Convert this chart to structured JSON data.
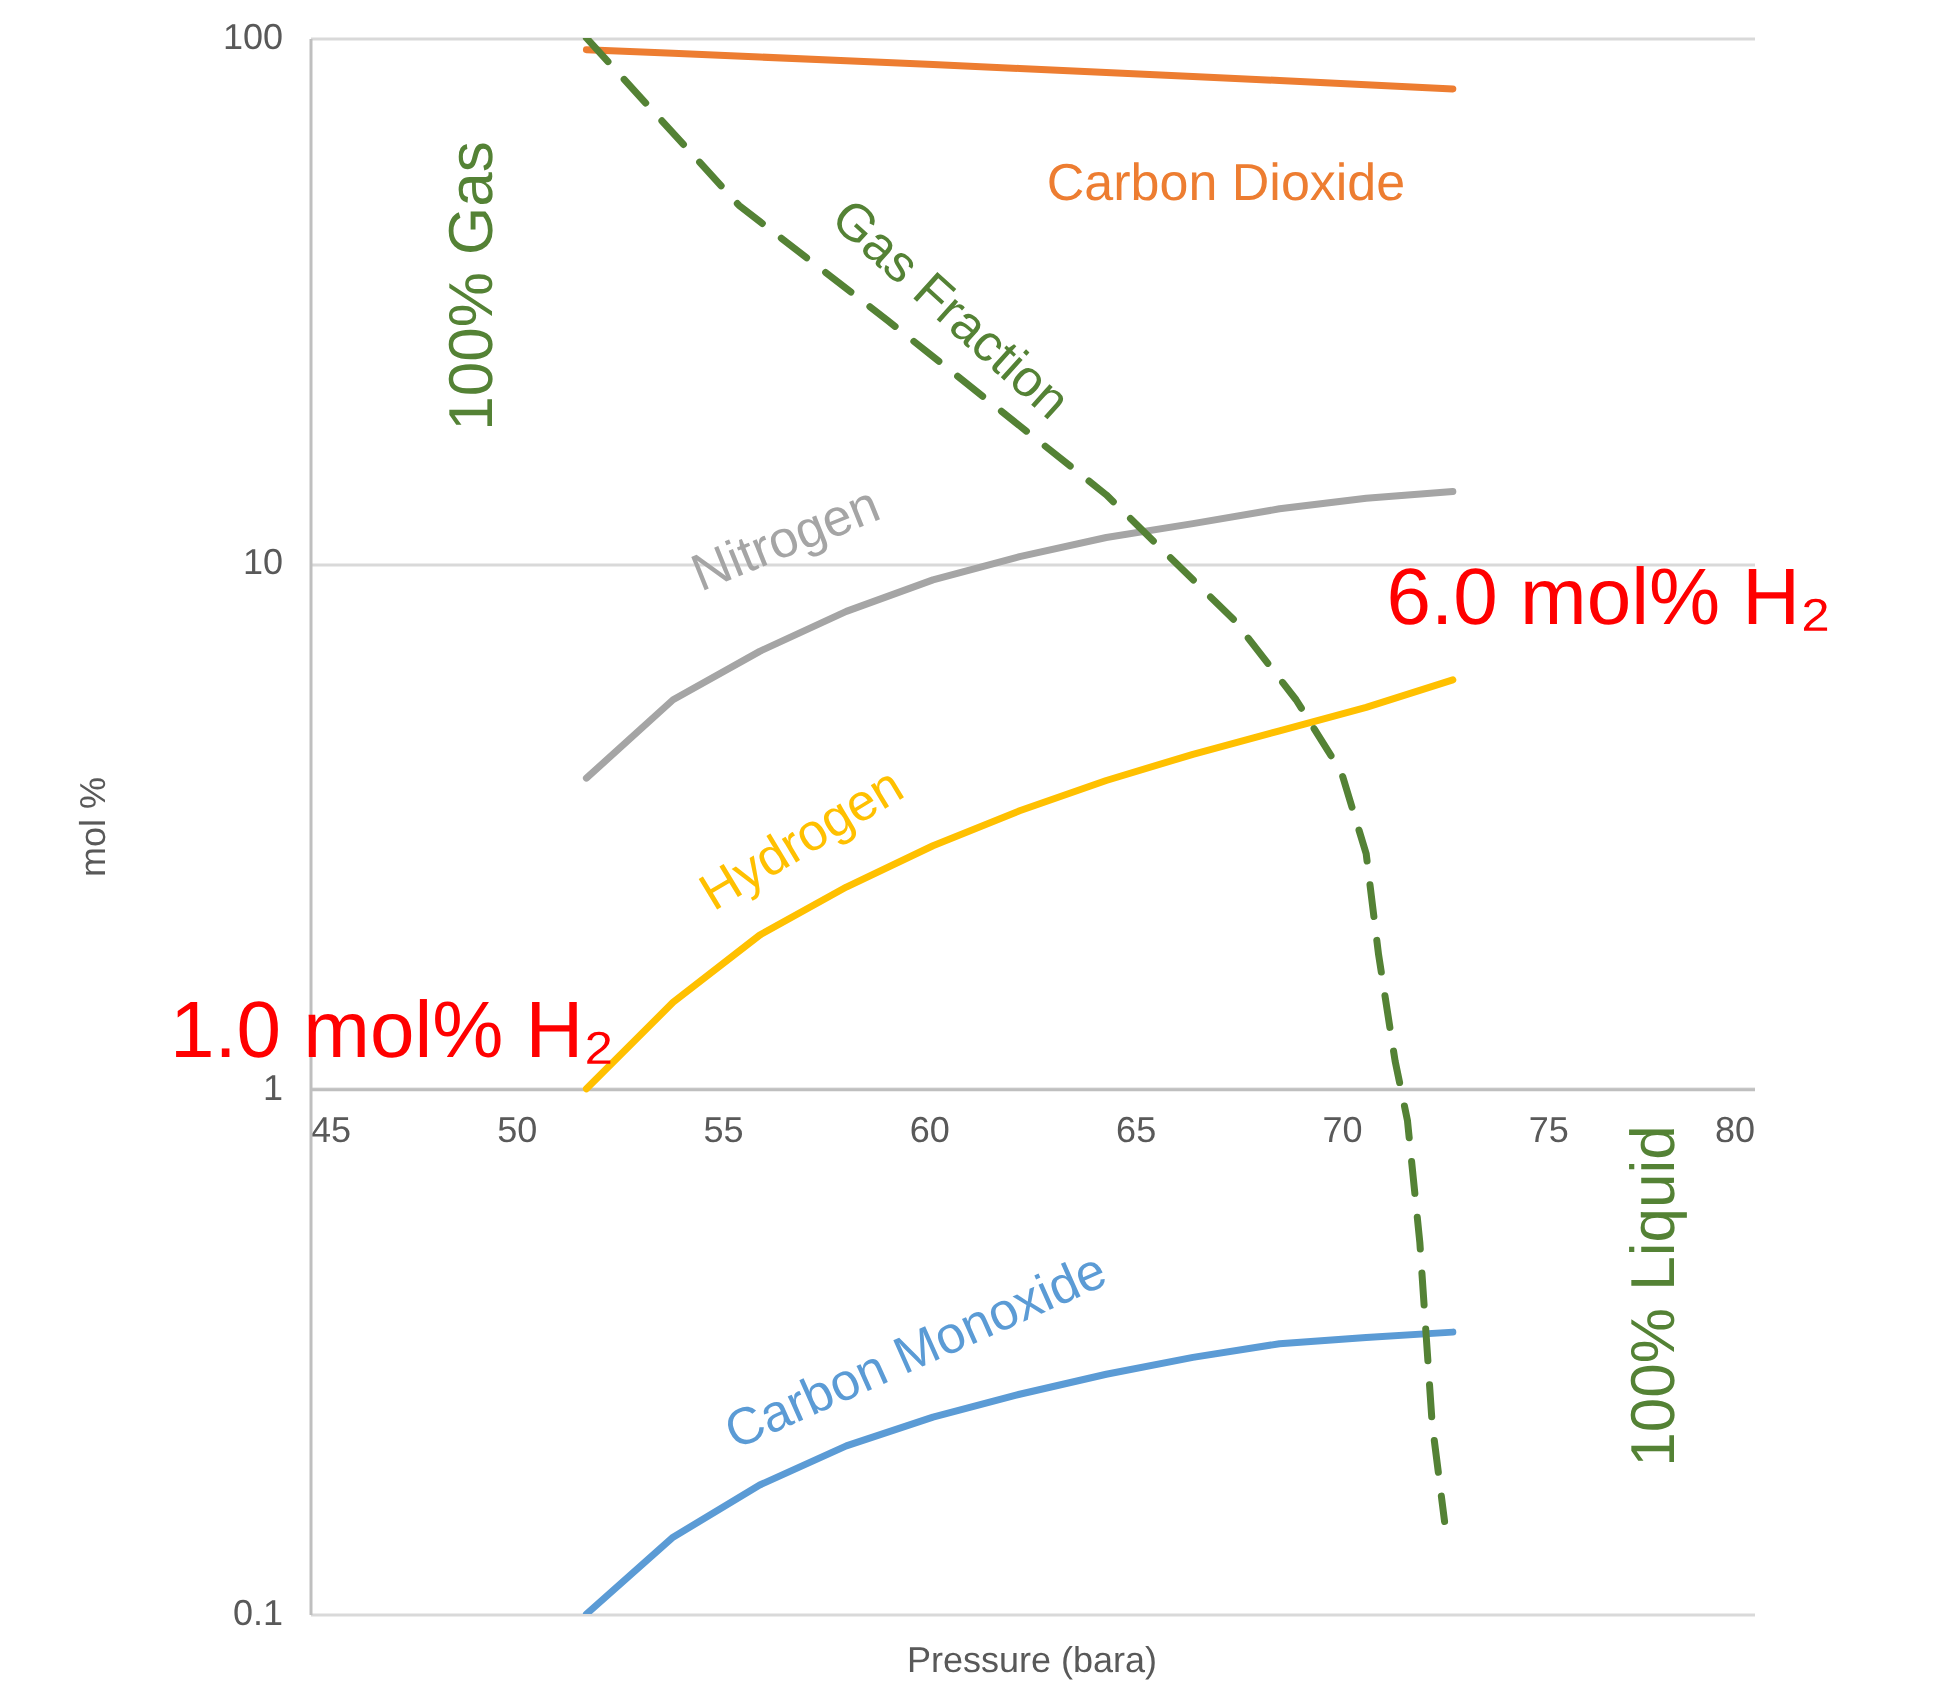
{
  "chart_data": {
    "type": "line",
    "xlabel": "Pressure (bara)",
    "ylabel": "mol %",
    "log": "y",
    "grid": "y",
    "line_style": "solid",
    "xlim": [
      45,
      80
    ],
    "xticks": [
      45,
      50,
      55,
      60,
      65,
      70,
      75,
      80
    ],
    "ylim": [
      0.1,
      100
    ],
    "yticks": [
      0.1,
      1,
      10,
      100
    ],
    "x": [
      51.7,
      53.8,
      55.9,
      58.0,
      60.1,
      62.2,
      64.3,
      66.4,
      68.5,
      70.6,
      72.7
    ],
    "series": [
      {
        "name": "Carbon Dioxide",
        "color": "#ed7d31",
        "values": [
          95,
          93.5,
          92,
          90.5,
          89,
          87.5,
          86,
          84.5,
          83,
          81.5,
          80
        ]
      },
      {
        "name": "Nitrogen",
        "color": "#a5a5a5",
        "values": [
          3.9,
          5.5,
          6.8,
          8.1,
          9.3,
          10.3,
          11.2,
          11.9,
          12.7,
          13.3,
          13.7
        ]
      },
      {
        "name": "Hydrogen",
        "color": "#ffc000",
        "values": [
          1.0,
          1.46,
          1.96,
          2.42,
          2.9,
          3.38,
          3.86,
          4.33,
          4.8,
          5.32,
          6.0
        ]
      },
      {
        "name": "Carbon Monoxide",
        "color": "#5b9bd5",
        "values": [
          0.1,
          0.14,
          0.176,
          0.209,
          0.237,
          0.262,
          0.286,
          0.308,
          0.327,
          0.336,
          0.344
        ]
      },
      {
        "name": "Gas Fraction",
        "color": "#548235",
        "line_style": "dashed",
        "x": [
          51.7,
          55.4,
          59.0,
          64.3,
          67.4,
          68.9,
          70.0,
          70.6,
          70.9,
          71.3,
          71.6,
          71.9,
          72.2,
          72.5
        ],
        "values": [
          100,
          48,
          29,
          13.5,
          7.8,
          5.5,
          4.0,
          2.8,
          1.8,
          1.13,
          0.87,
          0.51,
          0.23,
          0.15
        ]
      }
    ],
    "annotations": [
      "100% Gas",
      "100% Liquid",
      {
        "text": "1.0 mol% H₂",
        "x": 51.7,
        "y": 1.0
      },
      {
        "text": "6.0 mol% H₂",
        "x": 72.7,
        "y": 6.0
      }
    ]
  }
}
